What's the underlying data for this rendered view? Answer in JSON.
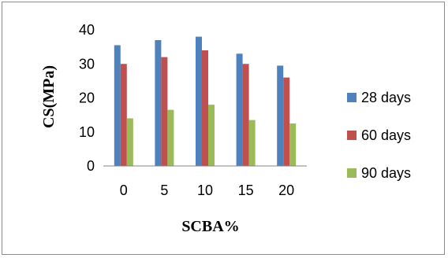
{
  "chart_data": {
    "type": "bar",
    "title": "",
    "xlabel": "SCBA%",
    "ylabel": "CS(MPa)",
    "categories": [
      "0",
      "5",
      "10",
      "15",
      "20"
    ],
    "ylim": [
      0,
      40
    ],
    "yticks": [
      0,
      10,
      20,
      30,
      40
    ],
    "grid": false,
    "legend_position": "right",
    "series": [
      {
        "name": "28 days",
        "color": "#4f81bd",
        "values": [
          35.5,
          37,
          38,
          33,
          29.5
        ]
      },
      {
        "name": "60 days",
        "color": "#c0504d",
        "values": [
          30,
          32,
          34,
          30,
          26
        ]
      },
      {
        "name": "90 days",
        "color": "#9bbb59",
        "values": [
          14,
          16.5,
          18,
          13.5,
          12.5
        ]
      }
    ]
  }
}
